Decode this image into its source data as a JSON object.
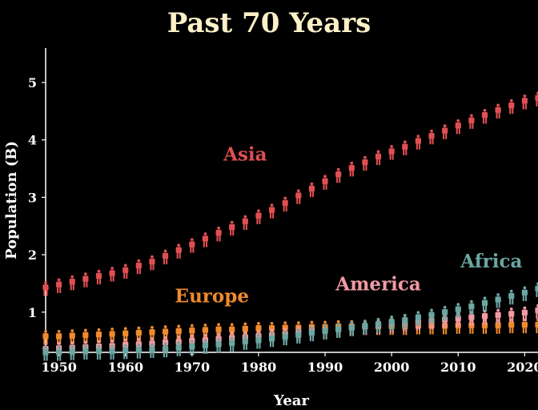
{
  "chart_data": {
    "type": "scatter",
    "title": "Past 70 Years",
    "xlabel": "Year",
    "ylabel": "Population (B)",
    "xlim": [
      1948,
      2022
    ],
    "ylim": [
      0.3,
      5.6
    ],
    "xticks": [
      1950,
      1960,
      1970,
      1980,
      1990,
      2000,
      2010,
      2020
    ],
    "yticks": [
      1,
      2,
      3,
      4,
      5
    ],
    "grid": false,
    "legend": "inline labels",
    "marker": "person-icon",
    "x": [
      1948,
      1950,
      1952,
      1954,
      1956,
      1958,
      1960,
      1962,
      1964,
      1966,
      1968,
      1970,
      1972,
      1974,
      1976,
      1978,
      1980,
      1982,
      1984,
      1986,
      1988,
      1990,
      1992,
      1994,
      1996,
      1998,
      2000,
      2002,
      2004,
      2006,
      2008,
      2010,
      2012,
      2014,
      2016,
      2018,
      2020,
      2022
    ],
    "series": [
      {
        "name": "Europe",
        "color": "#ef8a2e",
        "values": [
          0.55,
          0.55,
          0.56,
          0.57,
          0.58,
          0.59,
          0.6,
          0.61,
          0.62,
          0.63,
          0.64,
          0.65,
          0.66,
          0.67,
          0.67,
          0.68,
          0.69,
          0.69,
          0.7,
          0.7,
          0.71,
          0.71,
          0.72,
          0.72,
          0.72,
          0.72,
          0.72,
          0.72,
          0.73,
          0.73,
          0.73,
          0.74,
          0.74,
          0.74,
          0.74,
          0.75,
          0.75,
          0.75
        ]
      },
      {
        "name": "America",
        "color": "#f29aa3",
        "values": [
          0.33,
          0.34,
          0.35,
          0.36,
          0.37,
          0.38,
          0.4,
          0.41,
          0.42,
          0.44,
          0.45,
          0.47,
          0.48,
          0.5,
          0.52,
          0.53,
          0.55,
          0.57,
          0.59,
          0.61,
          0.63,
          0.65,
          0.67,
          0.7,
          0.72,
          0.74,
          0.76,
          0.78,
          0.8,
          0.82,
          0.84,
          0.86,
          0.88,
          0.9,
          0.92,
          0.94,
          0.96,
          1.0
        ]
      },
      {
        "name": "Africa",
        "color": "#6aa6a2",
        "values": [
          0.27,
          0.27,
          0.28,
          0.29,
          0.29,
          0.29,
          0.3,
          0.31,
          0.32,
          0.33,
          0.35,
          0.37,
          0.39,
          0.41,
          0.43,
          0.46,
          0.48,
          0.51,
          0.54,
          0.57,
          0.61,
          0.64,
          0.67,
          0.7,
          0.73,
          0.76,
          0.8,
          0.83,
          0.88,
          0.92,
          0.97,
          1.02,
          1.07,
          1.13,
          1.19,
          1.25,
          1.31,
          1.38
        ]
      },
      {
        "name": "Asia",
        "color": "#df4f52",
        "values": [
          1.4,
          1.45,
          1.5,
          1.55,
          1.6,
          1.65,
          1.7,
          1.78,
          1.85,
          1.95,
          2.05,
          2.15,
          2.25,
          2.35,
          2.45,
          2.55,
          2.65,
          2.75,
          2.87,
          3.0,
          3.12,
          3.25,
          3.37,
          3.48,
          3.58,
          3.68,
          3.77,
          3.85,
          3.95,
          4.04,
          4.13,
          4.22,
          4.31,
          4.4,
          4.49,
          4.57,
          4.65,
          4.7
        ]
      }
    ],
    "label_positions": [
      {
        "name": "Asia",
        "x": 1978,
        "y": 3.75
      },
      {
        "name": "Europe",
        "x": 1973,
        "y": 1.28
      },
      {
        "name": "America",
        "x": 1998,
        "y": 1.49
      },
      {
        "name": "Africa",
        "x": 2015,
        "y": 1.89
      }
    ],
    "colors": {
      "title": "#fdf1c7",
      "axis": "#ffffff",
      "background": "#000000"
    }
  }
}
